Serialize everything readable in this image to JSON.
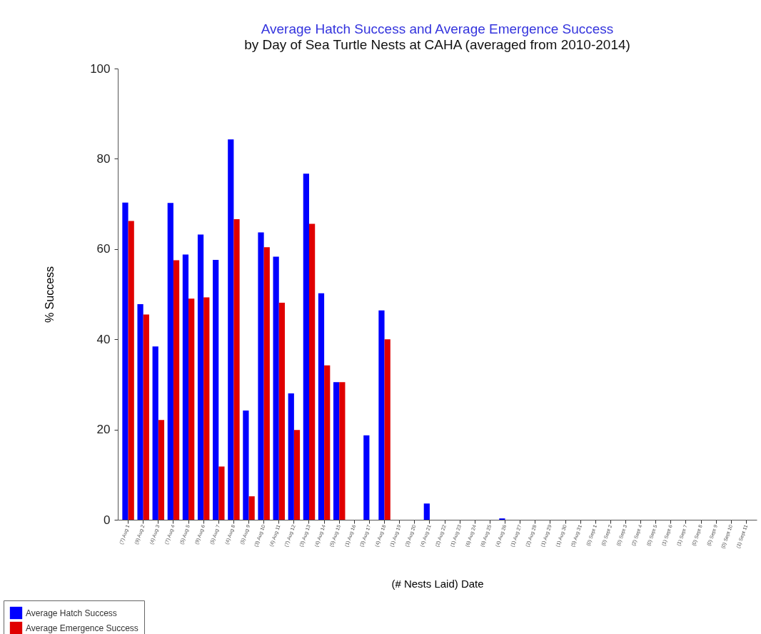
{
  "chart_data": {
    "type": "bar",
    "title": "Average Hatch Success and Average Emergence Success",
    "subtitle": "by Day of Sea Turtle Nests at CAHA (averaged from 2010-2014)",
    "xlabel": "(# Nests Laid) Date",
    "ylabel": "% Success",
    "categories": [
      "(7) Aug 1",
      "(9) Aug 2",
      "(4) Aug 3",
      "(7) Aug 4",
      "(5) Aug 5",
      "(9) Aug 6",
      "(5) Aug 7",
      "(4) Aug 8",
      "(5) Aug 9",
      "(3) Aug 10",
      "(4) Aug 11",
      "(7) Aug 12",
      "(3) Aug 13",
      "(4) Aug 14",
      "(5) Aug 15",
      "(1) Aug 16",
      "(3) Aug 17",
      "(4) Aug 18",
      "(1) Aug 19",
      "(3) Aug 20",
      "(4) Aug 21",
      "(2) Aug 22",
      "(1) Aug 23",
      "(6) Aug 24",
      "(6) Aug 25",
      "(4) Aug 26",
      "(1) Aug 27",
      "(2) Aug 28",
      "(1) Aug 29",
      "(1) Aug 30",
      "(5) Aug 31",
      "(0) Sept 1",
      "(0) Sept 2",
      "(0) Sept 3",
      "(2) Sept 4",
      "(0) Sept 5",
      "(1) Sept 6",
      "(1) Sept 7",
      "(0) Sept 8",
      "(0) Sept 9",
      "(0) Sept 10",
      "(1) Sept 11"
    ],
    "series": [
      {
        "name": "Average Hatch Success",
        "color": "#0000ff",
        "values": [
          70.3,
          47.8,
          38.4,
          70.2,
          58.8,
          63.2,
          57.6,
          84.3,
          24.2,
          63.7,
          58.3,
          28,
          76.7,
          50.2,
          30.5,
          0,
          18.7,
          46.4,
          0,
          0,
          3.6,
          0,
          0,
          0,
          0,
          0.3,
          0,
          0,
          0,
          0,
          0,
          0,
          0,
          0,
          0,
          0,
          0,
          0,
          0,
          0,
          0,
          0
        ]
      },
      {
        "name": "Average Emergence Success",
        "color": "#e00000",
        "values": [
          66.2,
          45.5,
          22.1,
          57.5,
          49,
          49.3,
          11.8,
          66.6,
          5.2,
          60.4,
          48.1,
          19.9,
          65.6,
          34.2,
          30.5,
          0,
          0,
          40,
          0,
          0,
          0,
          0,
          0,
          0,
          0,
          0,
          0,
          0,
          0,
          0,
          0,
          0,
          0,
          0,
          0,
          0,
          0,
          0,
          0,
          0,
          0,
          0
        ]
      }
    ],
    "ylim": [
      0,
      100
    ],
    "yticks": [
      0,
      20,
      40,
      60,
      80,
      100
    ],
    "legend": "bottom left"
  }
}
